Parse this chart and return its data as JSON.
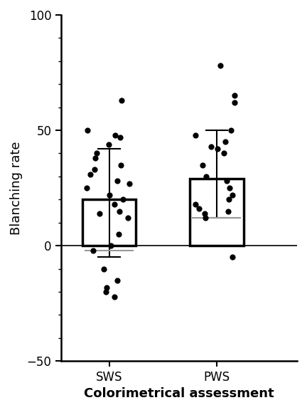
{
  "groups": [
    "SWS",
    "PWS"
  ],
  "bar_means": [
    20,
    29
  ],
  "bar_colors": [
    "white",
    "white"
  ],
  "bar_edgecolors": [
    "black",
    "black"
  ],
  "bar_linewidth": 2.5,
  "error_upper": [
    42,
    50
  ],
  "error_lower": [
    -5,
    12
  ],
  "median_lines": [
    -2,
    12
  ],
  "sws_dots": [
    63,
    50,
    48,
    47,
    44,
    40,
    38,
    35,
    33,
    31,
    28,
    27,
    25,
    22,
    20,
    18,
    15,
    14,
    12,
    5,
    0,
    -2,
    -10,
    -15,
    -18,
    -20,
    -22
  ],
  "pws_dots": [
    78,
    65,
    62,
    50,
    48,
    45,
    43,
    42,
    40,
    35,
    30,
    28,
    25,
    22,
    20,
    18,
    16,
    15,
    14,
    12,
    -5
  ],
  "ylim": [
    -50,
    100
  ],
  "yticks": [
    -50,
    0,
    50,
    100
  ],
  "ylabel": "Blanching rate",
  "xlabel": "Colorimetrical assessment",
  "xlabel_fontsize": 13,
  "ylabel_fontsize": 13,
  "tick_fontsize": 12,
  "bar_width": 0.5,
  "dot_color": "black",
  "dot_size": 35,
  "error_linewidth": 1.5,
  "background_color": "white",
  "x_positions": [
    1,
    2
  ],
  "xlim": [
    0.55,
    2.75
  ]
}
